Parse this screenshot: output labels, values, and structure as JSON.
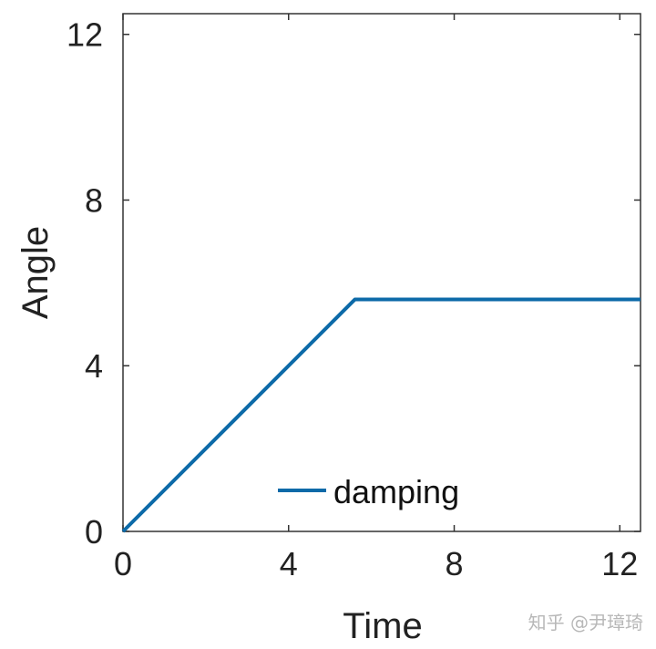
{
  "chart_data": {
    "type": "line",
    "title": "",
    "xlabel": "Time",
    "ylabel": "Angle",
    "xlim": [
      0,
      12.5
    ],
    "ylim": [
      0,
      12.5
    ],
    "xticks": [
      "0",
      "4",
      "8",
      "12"
    ],
    "yticks": [
      "0",
      "4",
      "8",
      "12"
    ],
    "grid": false,
    "legend_position": "bottom-center",
    "series": [
      {
        "name": "damping",
        "color": "#0c6aa8",
        "x": [
          0,
          5.6,
          12.5
        ],
        "y": [
          0,
          5.6,
          5.6
        ]
      }
    ]
  },
  "watermark": "知乎 @尹璋琦"
}
